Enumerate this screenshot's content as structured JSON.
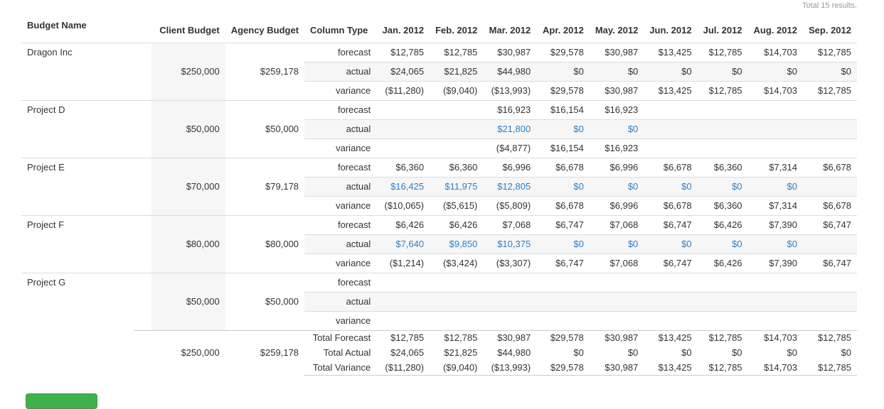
{
  "total_results": "Total 15 results.",
  "columns": {
    "budget_name": "Budget Name",
    "client_budget": "Client Budget",
    "agency_budget": "Agency Budget",
    "column_type": "Column Type",
    "months": [
      "Jan. 2012",
      "Feb. 2012",
      "Mar. 2012",
      "Apr. 2012",
      "May. 2012",
      "Jun. 2012",
      "Jul. 2012",
      "Aug. 2012",
      "Sep. 2012"
    ]
  },
  "row_types": [
    "forecast",
    "actual",
    "variance"
  ],
  "projects": [
    {
      "name": "Dragon Inc",
      "client_budget": "$250,000",
      "agency_budget": "$259,178",
      "forecast": [
        "$12,785",
        "$12,785",
        "$30,987",
        "$29,578",
        "$30,987",
        "$13,425",
        "$12,785",
        "$14,703",
        "$12,785"
      ],
      "actual": [
        "$24,065",
        "$21,825",
        "$44,980",
        "$0",
        "$0",
        "$0",
        "$0",
        "$0",
        "$0"
      ],
      "variance": [
        "($11,280)",
        "($9,040)",
        "($13,993)",
        "$29,578",
        "$30,987",
        "$13,425",
        "$12,785",
        "$14,703",
        "$12,785"
      ],
      "actual_links": false
    },
    {
      "name": "Project D",
      "client_budget": "$50,000",
      "agency_budget": "$50,000",
      "forecast": [
        "",
        "",
        "$16,923",
        "$16,154",
        "$16,923",
        "",
        "",
        "",
        ""
      ],
      "actual": [
        "",
        "",
        "$21,800",
        "$0",
        "$0",
        "",
        "",
        "",
        ""
      ],
      "variance": [
        "",
        "",
        "($4,877)",
        "$16,154",
        "$16,923",
        "",
        "",
        "",
        ""
      ],
      "actual_links": true
    },
    {
      "name": "Project E",
      "client_budget": "$70,000",
      "agency_budget": "$79,178",
      "forecast": [
        "$6,360",
        "$6,360",
        "$6,996",
        "$6,678",
        "$6,996",
        "$6,678",
        "$6,360",
        "$7,314",
        "$6,678"
      ],
      "actual": [
        "$16,425",
        "$11,975",
        "$12,805",
        "$0",
        "$0",
        "$0",
        "$0",
        "$0",
        ""
      ],
      "variance": [
        "($10,065)",
        "($5,615)",
        "($5,809)",
        "$6,678",
        "$6,996",
        "$6,678",
        "$6,360",
        "$7,314",
        "$6,678"
      ],
      "actual_links": true
    },
    {
      "name": "Project F",
      "client_budget": "$80,000",
      "agency_budget": "$80,000",
      "forecast": [
        "$6,426",
        "$6,426",
        "$7,068",
        "$6,747",
        "$7,068",
        "$6,747",
        "$6,426",
        "$7,390",
        "$6,747"
      ],
      "actual": [
        "$7,640",
        "$9,850",
        "$10,375",
        "$0",
        "$0",
        "$0",
        "$0",
        "$0",
        ""
      ],
      "variance": [
        "($1,214)",
        "($3,424)",
        "($3,307)",
        "$6,747",
        "$7,068",
        "$6,747",
        "$6,426",
        "$7,390",
        "$6,747"
      ],
      "actual_links": true
    },
    {
      "name": "Project G",
      "client_budget": "$50,000",
      "agency_budget": "$50,000",
      "forecast": [
        "",
        "",
        "",
        "",
        "",
        "",
        "",
        "",
        ""
      ],
      "actual": [
        "",
        "",
        "",
        "",
        "",
        "",
        "",
        "",
        ""
      ],
      "variance": [
        "",
        "",
        "",
        "",
        "",
        "",
        "",
        "",
        ""
      ],
      "actual_links": false
    }
  ],
  "totals": {
    "client_budget": "$250,000",
    "agency_budget": "$259,178",
    "rows": [
      {
        "label": "Total Forecast",
        "values": [
          "$12,785",
          "$12,785",
          "$30,987",
          "$29,578",
          "$30,987",
          "$13,425",
          "$12,785",
          "$14,703",
          "$12,785"
        ]
      },
      {
        "label": "Total Actual",
        "values": [
          "$24,065",
          "$21,825",
          "$44,980",
          "$0",
          "$0",
          "$0",
          "$0",
          "$0",
          "$0"
        ]
      },
      {
        "label": "Total Variance",
        "values": [
          "($11,280)",
          "($9,040)",
          "($13,993)",
          "$29,578",
          "$30,987",
          "$13,425",
          "$12,785",
          "$14,703",
          "$12,785"
        ]
      }
    ]
  }
}
